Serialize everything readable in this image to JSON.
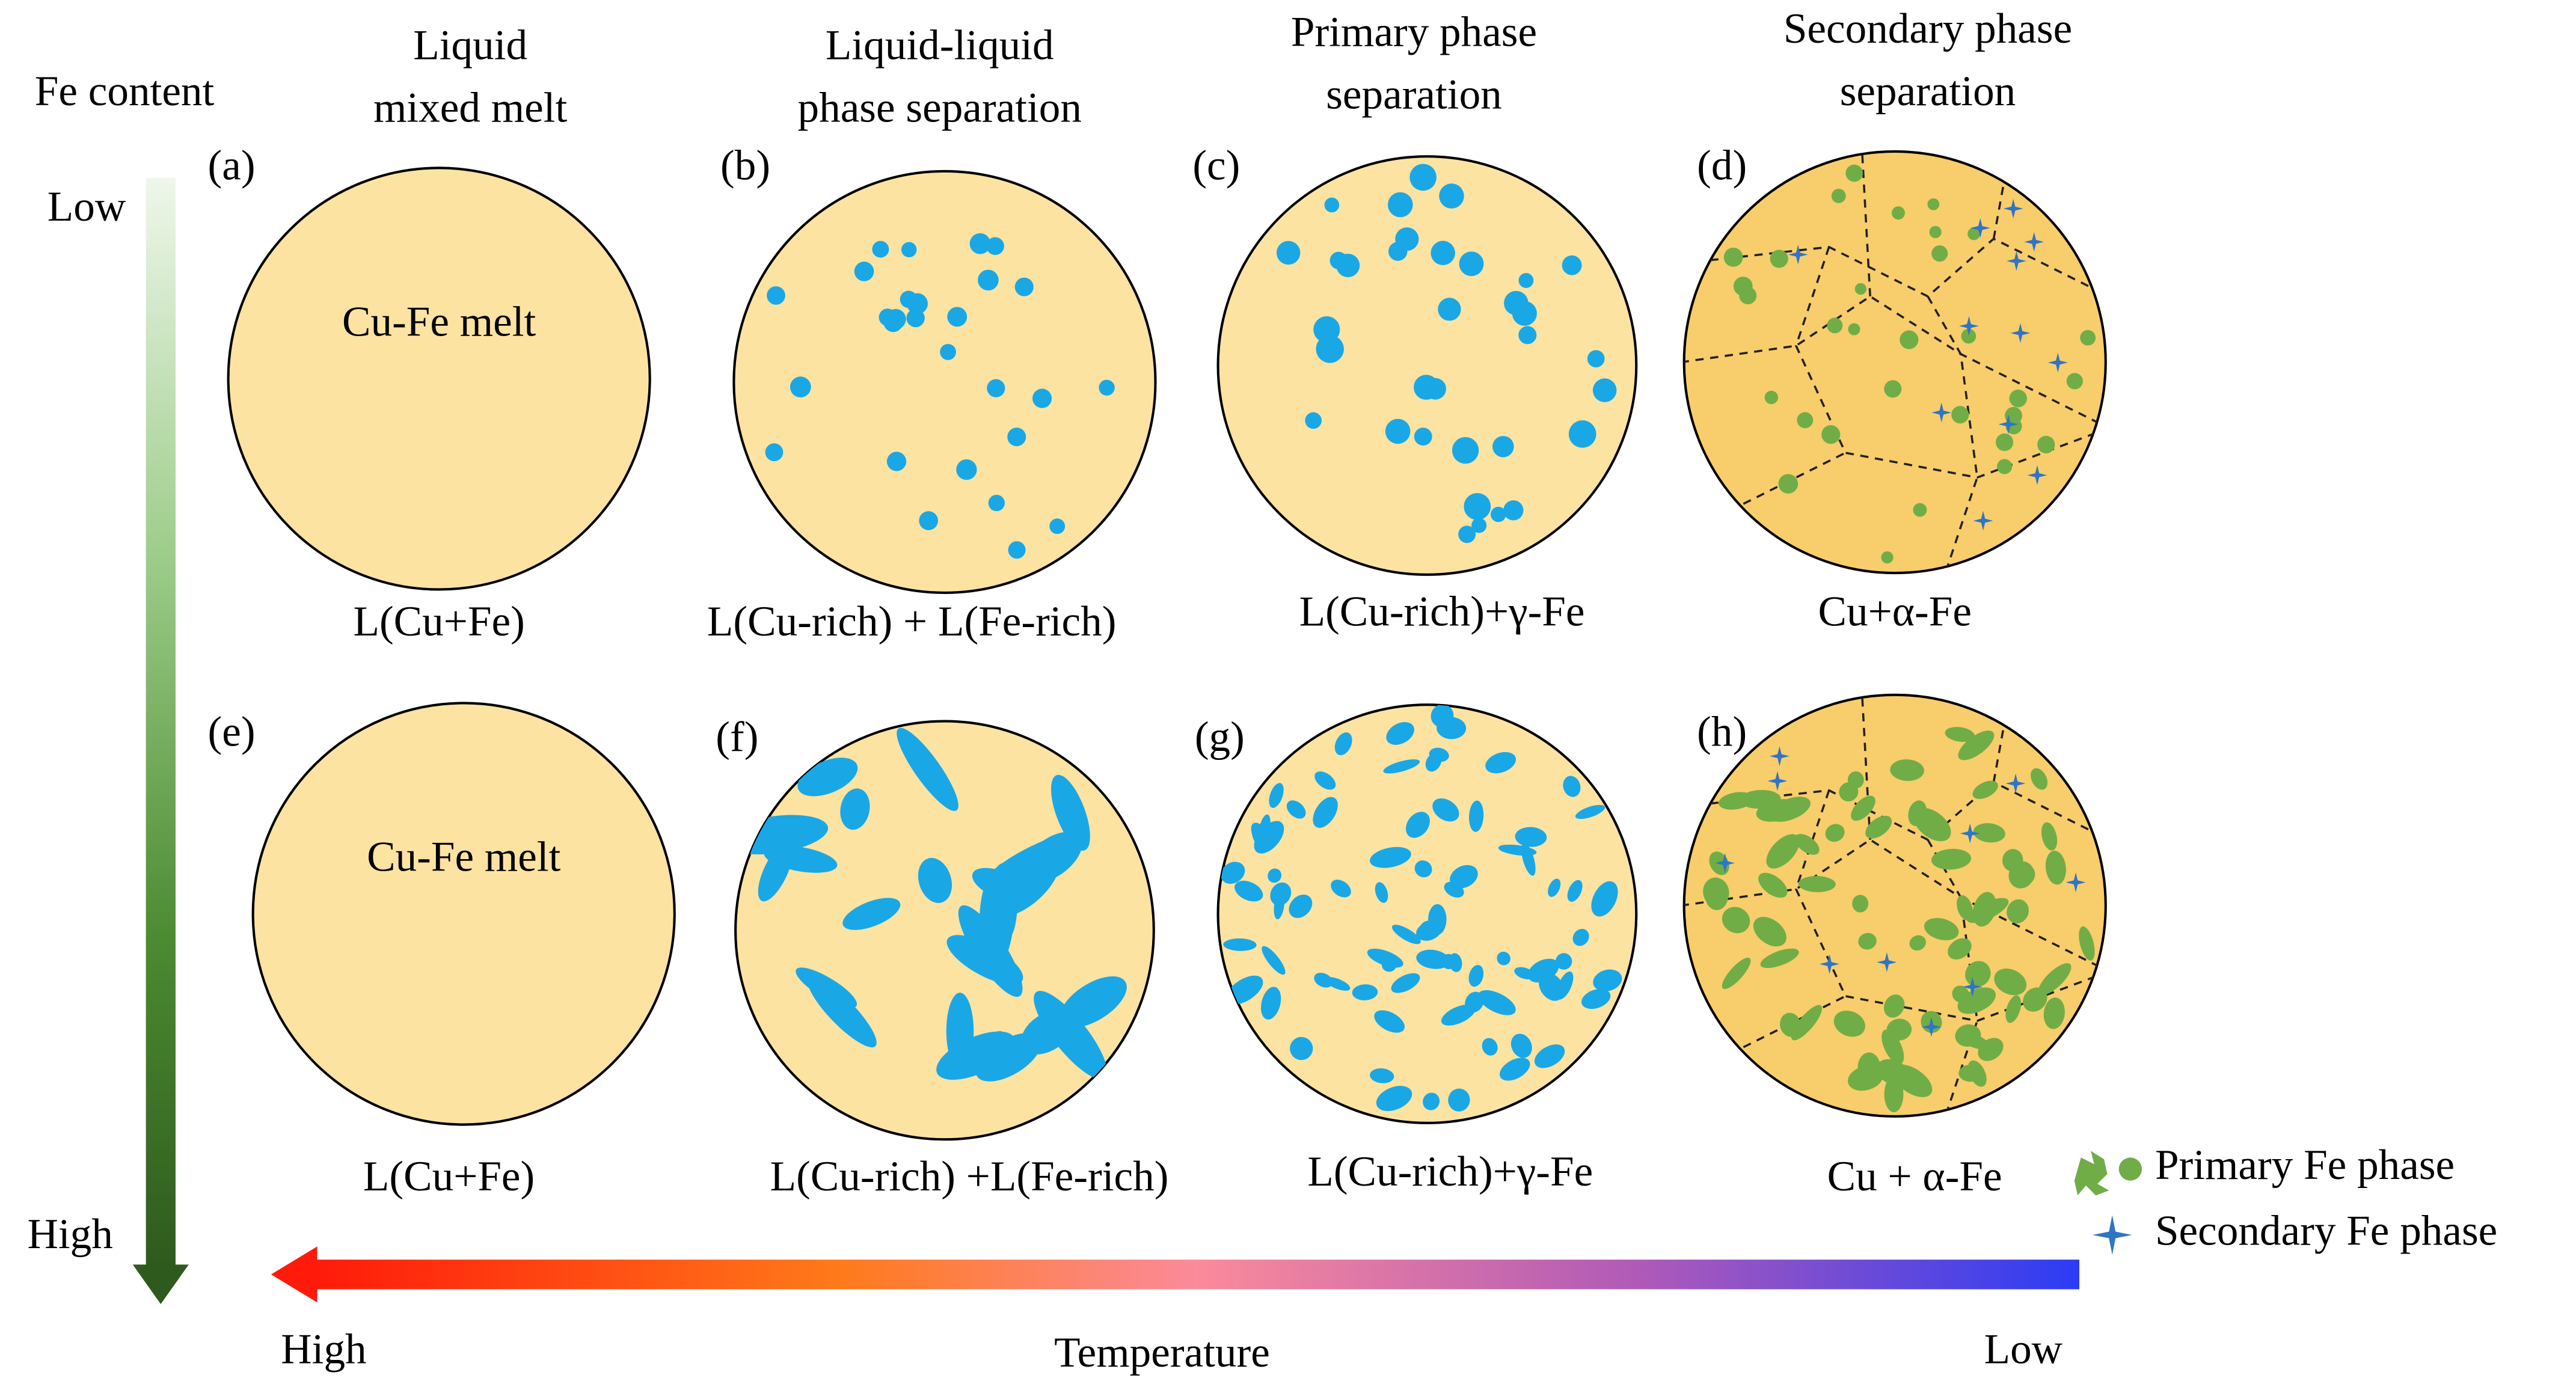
{
  "axis_left": {
    "title": "Fe content",
    "low": "Low",
    "high": "High"
  },
  "axis_bottom": {
    "title": "Temperature",
    "high": "High",
    "low": "Low"
  },
  "columns": [
    {
      "lines": [
        "Liquid",
        "mixed melt"
      ]
    },
    {
      "lines": [
        "Liquid-liquid",
        "phase separation"
      ]
    },
    {
      "lines": [
        "Primary phase",
        "separation"
      ]
    },
    {
      "lines": [
        "Secondary phase",
        "separation"
      ]
    }
  ],
  "panels": [
    {
      "label": "(a)",
      "text": "Cu-Fe melt",
      "caption": "L(Cu+Fe)"
    },
    {
      "label": "(b)",
      "caption": "L(Cu-rich) + L(Fe-rich)"
    },
    {
      "label": "(c)",
      "caption": "L(Cu-rich)+γ-Fe"
    },
    {
      "label": "(d)",
      "caption": "Cu+α-Fe"
    },
    {
      "label": "(e)",
      "text": "Cu-Fe melt",
      "caption": "L(Cu+Fe)"
    },
    {
      "label": "(f)",
      "caption": "L(Cu-rich) +L(Fe-rich)"
    },
    {
      "label": "(g)",
      "caption": "L(Cu-rich)+γ-Fe"
    },
    {
      "label": "(h)",
      "caption": "Cu + α-Fe"
    }
  ],
  "legend": [
    {
      "label": "Primary Fe phase"
    },
    {
      "label": "Secondary Fe phase"
    }
  ]
}
